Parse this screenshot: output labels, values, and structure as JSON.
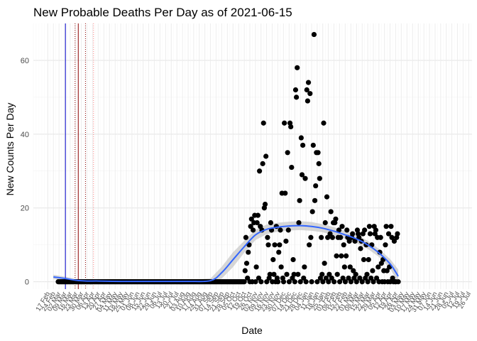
{
  "chart_data": {
    "type": "scatter",
    "title": "New Probable Deaths Per Day as of 2021-06-15",
    "xlabel": "Date",
    "ylabel": "New Counts Per Day",
    "ylim": [
      -2,
      70
    ],
    "yticks": [
      0,
      20,
      40,
      60
    ],
    "x_start": "2020-02-17",
    "x_end": "2021-07-26",
    "x_tick_labels": [
      "17 Feb",
      "24 Feb",
      "02 Mar",
      "09 Mar",
      "16 Mar",
      "23 Mar",
      "30 Mar",
      "06 Apr",
      "13 Apr",
      "20 Apr",
      "27 Apr",
      "04 May",
      "11 May",
      "18 May",
      "25 May",
      "01 Jun",
      "08 Jun",
      "15 Jun",
      "22 Jun",
      "29 Jun",
      "06 Jul",
      "13 Jul",
      "20 Jul",
      "27 Jul",
      "03 Aug",
      "10 Aug",
      "17 Aug",
      "24 Aug",
      "31 Aug",
      "07 Sep",
      "14 Sep",
      "21 Sep",
      "28 Sep",
      "05 Oct",
      "12 Oct",
      "19 Oct",
      "26 Oct",
      "02 Nov",
      "09 Nov",
      "16 Nov",
      "23 Nov",
      "30 Nov",
      "07 Dec",
      "14 Dec",
      "21 Dec",
      "28 Dec",
      "04 Jan",
      "11 Jan",
      "18 Jan",
      "25 Jan",
      "01 Feb",
      "08 Feb",
      "15 Feb",
      "22 Feb",
      "01 Mar",
      "08 Mar",
      "15 Mar",
      "22 Mar",
      "29 Mar",
      "05 Apr",
      "12 Apr",
      "19 Apr",
      "26 Apr",
      "03 May",
      "10 May",
      "17 May",
      "24 May",
      "31 May",
      "07 Jun",
      "14 Jun",
      "21 Jun",
      "28 Jun",
      "05 Jul",
      "12 Jul",
      "19 Jul",
      "26 Jul"
    ],
    "grid": true,
    "reference_lines": [
      {
        "date": "2020-03-10",
        "color": "#0000cc",
        "style": "solid"
      },
      {
        "date": "2020-03-22",
        "color": "#8b0000",
        "style": "dotted"
      },
      {
        "date": "2020-03-26",
        "color": "#8b0000",
        "style": "solid"
      },
      {
        "date": "2020-04-04",
        "color": "#8b0000",
        "style": "dotted"
      },
      {
        "date": "2020-04-14",
        "color": "#ff8080",
        "style": "dotted"
      }
    ],
    "zero_run": {
      "start": "2020-03-01",
      "end": "2020-10-18",
      "value": 0
    },
    "points": [
      [
        "2020-10-19",
        0
      ],
      [
        "2020-10-20",
        3
      ],
      [
        "2020-10-21",
        12
      ],
      [
        "2020-10-22",
        5
      ],
      [
        "2020-10-23",
        1
      ],
      [
        "2020-10-24",
        8
      ],
      [
        "2020-10-25",
        10
      ],
      [
        "2020-10-26",
        0
      ],
      [
        "2020-10-27",
        15
      ],
      [
        "2020-10-28",
        17
      ],
      [
        "2020-10-29",
        0
      ],
      [
        "2020-10-30",
        14
      ],
      [
        "2020-10-31",
        16
      ],
      [
        "2020-11-01",
        18
      ],
      [
        "2020-11-02",
        0
      ],
      [
        "2020-11-03",
        4
      ],
      [
        "2020-11-04",
        16
      ],
      [
        "2020-11-05",
        18
      ],
      [
        "2020-11-06",
        1
      ],
      [
        "2020-11-07",
        30
      ],
      [
        "2020-11-08",
        15
      ],
      [
        "2020-11-09",
        0
      ],
      [
        "2020-11-10",
        14
      ],
      [
        "2020-11-11",
        32
      ],
      [
        "2020-11-12",
        43
      ],
      [
        "2020-11-13",
        20
      ],
      [
        "2020-11-14",
        21
      ],
      [
        "2020-11-15",
        34
      ],
      [
        "2020-11-16",
        0
      ],
      [
        "2020-11-17",
        12
      ],
      [
        "2020-11-18",
        10
      ],
      [
        "2020-11-19",
        1
      ],
      [
        "2020-11-20",
        2
      ],
      [
        "2020-11-21",
        16
      ],
      [
        "2020-11-22",
        14
      ],
      [
        "2020-11-23",
        0
      ],
      [
        "2020-11-24",
        6
      ],
      [
        "2020-11-25",
        2
      ],
      [
        "2020-11-26",
        10
      ],
      [
        "2020-11-27",
        0
      ],
      [
        "2020-11-28",
        15
      ],
      [
        "2020-11-29",
        1
      ],
      [
        "2020-11-30",
        0
      ],
      [
        "2020-12-01",
        8
      ],
      [
        "2020-12-02",
        10
      ],
      [
        "2020-12-03",
        14
      ],
      [
        "2020-12-04",
        4
      ],
      [
        "2020-12-05",
        24
      ],
      [
        "2020-12-06",
        1
      ],
      [
        "2020-12-07",
        0
      ],
      [
        "2020-12-08",
        43
      ],
      [
        "2020-12-09",
        24
      ],
      [
        "2020-12-10",
        11
      ],
      [
        "2020-12-11",
        2
      ],
      [
        "2020-12-12",
        35
      ],
      [
        "2020-12-13",
        14
      ],
      [
        "2020-12-14",
        0
      ],
      [
        "2020-12-15",
        43
      ],
      [
        "2020-12-16",
        42
      ],
      [
        "2020-12-17",
        31
      ],
      [
        "2020-12-18",
        1
      ],
      [
        "2020-12-19",
        6
      ],
      [
        "2020-12-20",
        2
      ],
      [
        "2020-12-21",
        0
      ],
      [
        "2020-12-22",
        52
      ],
      [
        "2020-12-23",
        50
      ],
      [
        "2020-12-24",
        58
      ],
      [
        "2020-12-25",
        2
      ],
      [
        "2020-12-26",
        16
      ],
      [
        "2020-12-27",
        22
      ],
      [
        "2020-12-28",
        0
      ],
      [
        "2020-12-29",
        39
      ],
      [
        "2020-12-30",
        29
      ],
      [
        "2020-12-31",
        37
      ],
      [
        "2021-01-01",
        1
      ],
      [
        "2021-01-02",
        4
      ],
      [
        "2021-01-03",
        28
      ],
      [
        "2021-01-04",
        0
      ],
      [
        "2021-01-05",
        52
      ],
      [
        "2021-01-06",
        49
      ],
      [
        "2021-01-07",
        54
      ],
      [
        "2021-01-08",
        10
      ],
      [
        "2021-01-09",
        51
      ],
      [
        "2021-01-10",
        12
      ],
      [
        "2021-01-11",
        0
      ],
      [
        "2021-01-12",
        19
      ],
      [
        "2021-01-13",
        37
      ],
      [
        "2021-01-14",
        67
      ],
      [
        "2021-01-15",
        22
      ],
      [
        "2021-01-16",
        26
      ],
      [
        "2021-01-17",
        35
      ],
      [
        "2021-01-18",
        0
      ],
      [
        "2021-01-19",
        35
      ],
      [
        "2021-01-20",
        32
      ],
      [
        "2021-01-21",
        28
      ],
      [
        "2021-01-22",
        1
      ],
      [
        "2021-01-23",
        12
      ],
      [
        "2021-01-24",
        2
      ],
      [
        "2021-01-25",
        0
      ],
      [
        "2021-01-26",
        43
      ],
      [
        "2021-01-27",
        5
      ],
      [
        "2021-01-28",
        16
      ],
      [
        "2021-01-29",
        1
      ],
      [
        "2021-01-30",
        23
      ],
      [
        "2021-01-31",
        12
      ],
      [
        "2021-02-01",
        0
      ],
      [
        "2021-02-02",
        2
      ],
      [
        "2021-02-03",
        13
      ],
      [
        "2021-02-04",
        19
      ],
      [
        "2021-02-05",
        1
      ],
      [
        "2021-02-06",
        12
      ],
      [
        "2021-02-07",
        16
      ],
      [
        "2021-02-08",
        0
      ],
      [
        "2021-02-09",
        16
      ],
      [
        "2021-02-10",
        17
      ],
      [
        "2021-02-11",
        7
      ],
      [
        "2021-02-12",
        2
      ],
      [
        "2021-02-13",
        12
      ],
      [
        "2021-02-14",
        14
      ],
      [
        "2021-02-15",
        0
      ],
      [
        "2021-02-16",
        12
      ],
      [
        "2021-02-17",
        7
      ],
      [
        "2021-02-18",
        15
      ],
      [
        "2021-02-19",
        1
      ],
      [
        "2021-02-20",
        10
      ],
      [
        "2021-02-21",
        4
      ],
      [
        "2021-02-22",
        0
      ],
      [
        "2021-02-23",
        7
      ],
      [
        "2021-02-24",
        14
      ],
      [
        "2021-02-25",
        12
      ],
      [
        "2021-02-26",
        1
      ],
      [
        "2021-02-27",
        11
      ],
      [
        "2021-02-28",
        4
      ],
      [
        "2021-03-01",
        0
      ],
      [
        "2021-03-02",
        12
      ],
      [
        "2021-03-03",
        13
      ],
      [
        "2021-03-04",
        3
      ],
      [
        "2021-03-05",
        1
      ],
      [
        "2021-03-06",
        11
      ],
      [
        "2021-03-07",
        2
      ],
      [
        "2021-03-08",
        0
      ],
      [
        "2021-03-09",
        14
      ],
      [
        "2021-03-10",
        13
      ],
      [
        "2021-03-11",
        12
      ],
      [
        "2021-03-12",
        1
      ],
      [
        "2021-03-13",
        9
      ],
      [
        "2021-03-14",
        11
      ],
      [
        "2021-03-15",
        0
      ],
      [
        "2021-03-16",
        13
      ],
      [
        "2021-03-17",
        6
      ],
      [
        "2021-03-18",
        14
      ],
      [
        "2021-03-19",
        1
      ],
      [
        "2021-03-20",
        10
      ],
      [
        "2021-03-21",
        2
      ],
      [
        "2021-03-22",
        0
      ],
      [
        "2021-03-23",
        6
      ],
      [
        "2021-03-24",
        15
      ],
      [
        "2021-03-25",
        13
      ],
      [
        "2021-03-26",
        1
      ],
      [
        "2021-03-27",
        10
      ],
      [
        "2021-03-28",
        3
      ],
      [
        "2021-03-29",
        0
      ],
      [
        "2021-03-30",
        15
      ],
      [
        "2021-03-31",
        13
      ],
      [
        "2021-04-01",
        14
      ],
      [
        "2021-04-02",
        1
      ],
      [
        "2021-04-03",
        12
      ],
      [
        "2021-04-04",
        4
      ],
      [
        "2021-04-05",
        0
      ],
      [
        "2021-04-06",
        8
      ],
      [
        "2021-04-07",
        12
      ],
      [
        "2021-04-08",
        5
      ],
      [
        "2021-04-09",
        0
      ],
      [
        "2021-04-10",
        6
      ],
      [
        "2021-04-11",
        3
      ],
      [
        "2021-04-12",
        0
      ],
      [
        "2021-04-13",
        10
      ],
      [
        "2021-04-14",
        15
      ],
      [
        "2021-04-15",
        3
      ],
      [
        "2021-04-16",
        0
      ],
      [
        "2021-04-17",
        13
      ],
      [
        "2021-04-18",
        4
      ],
      [
        "2021-04-19",
        0
      ],
      [
        "2021-04-20",
        15
      ],
      [
        "2021-04-21",
        12
      ],
      [
        "2021-04-22",
        1
      ],
      [
        "2021-04-23",
        0
      ],
      [
        "2021-04-24",
        11
      ],
      [
        "2021-04-25",
        0
      ],
      [
        "2021-04-26",
        0
      ],
      [
        "2021-04-27",
        12
      ],
      [
        "2021-04-28",
        13
      ],
      [
        "2021-04-29",
        0
      ]
    ],
    "trend": {
      "color": "#3366ff",
      "band_color": "#cccccc",
      "x": [
        "2020-02-24",
        "2020-03-09",
        "2020-03-23",
        "2020-04-06",
        "2020-04-20",
        "2020-05-18",
        "2020-06-15",
        "2020-07-13",
        "2020-08-10",
        "2020-09-07",
        "2020-09-21",
        "2020-10-05",
        "2020-10-19",
        "2020-11-02",
        "2020-11-16",
        "2020-11-30",
        "2020-12-14",
        "2020-12-28",
        "2021-01-11",
        "2021-01-25",
        "2021-02-08",
        "2021-02-22",
        "2021-03-08",
        "2021-03-22",
        "2021-04-05",
        "2021-04-19",
        "2021-04-29"
      ],
      "y": [
        1.3,
        0.9,
        0.4,
        0.2,
        0.2,
        0.1,
        0.1,
        0.1,
        0.1,
        0.3,
        2.5,
        6.0,
        9.5,
        12.7,
        14.2,
        14.8,
        15.1,
        15.2,
        15.0,
        14.5,
        13.7,
        12.7,
        11.6,
        10.0,
        7.8,
        4.8,
        1.5
      ],
      "band_half_width": [
        0.6,
        0.5,
        0.4,
        0.4,
        0.4,
        0.4,
        0.4,
        0.4,
        0.4,
        0.6,
        1.6,
        2.0,
        1.6,
        1.4,
        1.3,
        1.2,
        1.2,
        1.2,
        1.2,
        1.1,
        1.1,
        1.1,
        1.1,
        1.1,
        1.1,
        1.3,
        1.8
      ]
    }
  }
}
